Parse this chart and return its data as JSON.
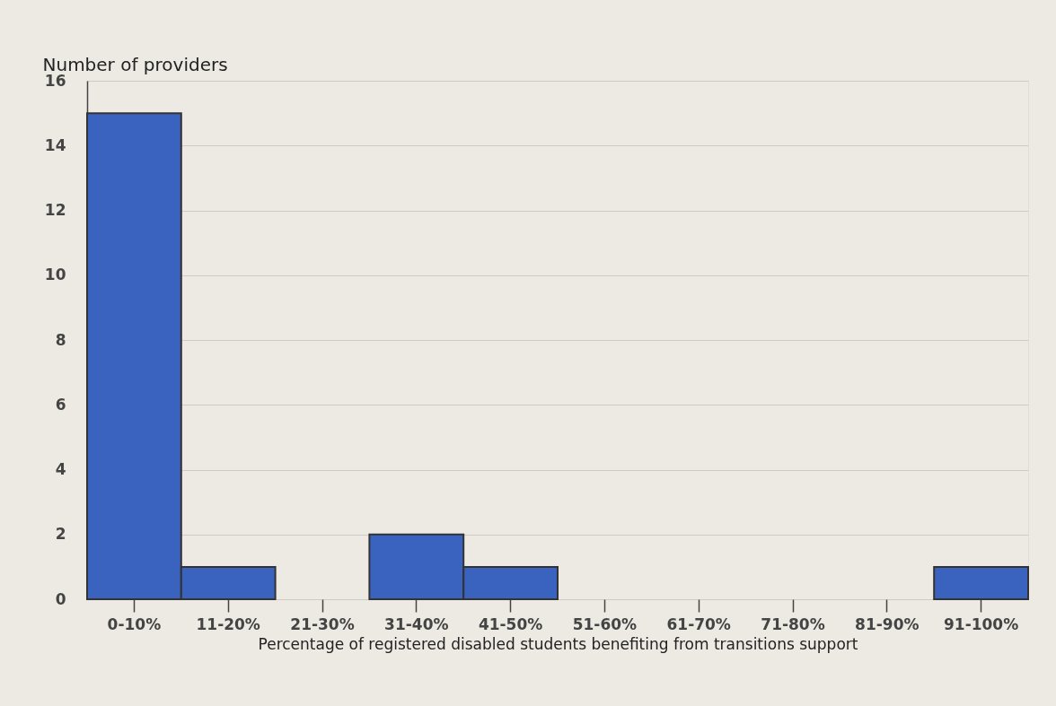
{
  "chart_data": {
    "type": "bar",
    "xlabel": "Percentage of registered disabled students benefiting from transitions support",
    "ylabel": "Number of providers",
    "categories": [
      "0-10%",
      "11-20%",
      "21-30%",
      "31-40%",
      "41-50%",
      "51-60%",
      "61-70%",
      "71-80%",
      "81-90%",
      "91-100%"
    ],
    "values": [
      15,
      1,
      0,
      2,
      1,
      0,
      0,
      0,
      0,
      1
    ],
    "color": "#3a63bf",
    "ylim": [
      0,
      16
    ],
    "yticks": [
      0,
      2,
      4,
      6,
      8,
      10,
      12,
      14,
      16
    ],
    "grid": "y"
  }
}
